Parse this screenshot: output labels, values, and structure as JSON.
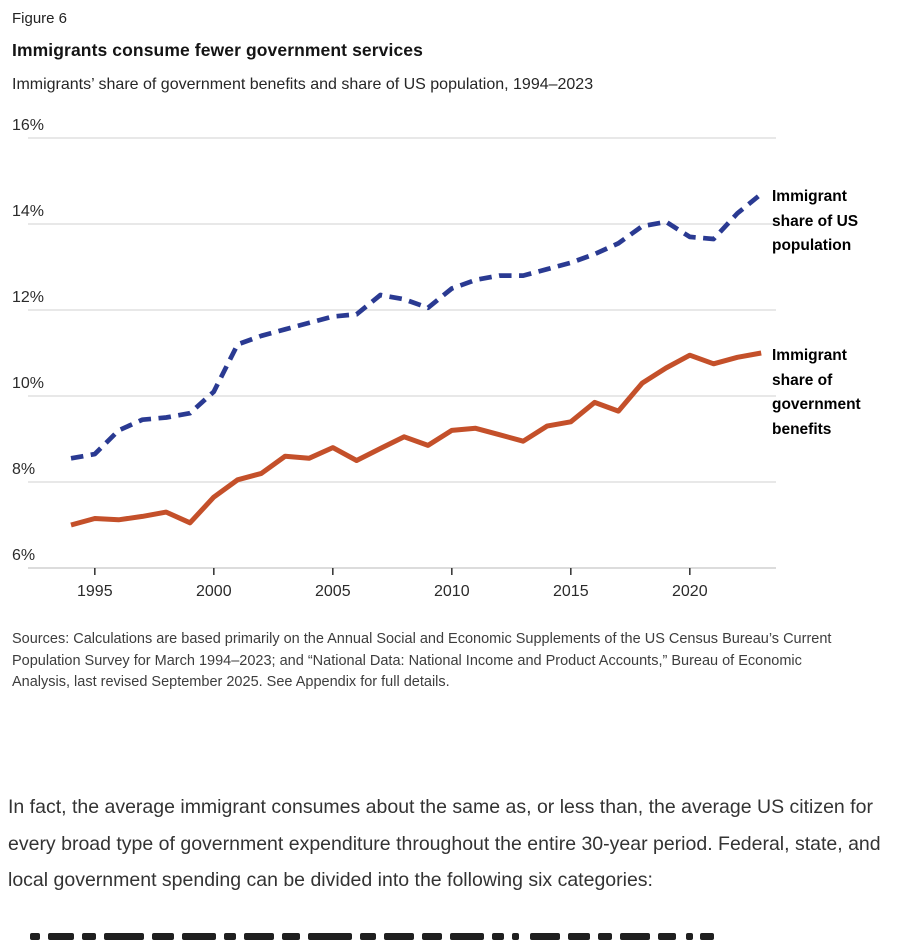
{
  "figure": {
    "label": "Figure 6",
    "title": "Immigrants consume fewer government services",
    "subtitle": "Immigrants’ share of government benefits and share of US population, 1994–2023"
  },
  "chart_data": {
    "type": "line",
    "x": [
      1994,
      1995,
      1996,
      1997,
      1998,
      1999,
      2000,
      2001,
      2002,
      2003,
      2004,
      2005,
      2006,
      2007,
      2008,
      2009,
      2010,
      2011,
      2012,
      2013,
      2014,
      2015,
      2016,
      2017,
      2018,
      2019,
      2020,
      2021,
      2022,
      2023
    ],
    "series": [
      {
        "name": "Immigrant share of US population",
        "style": "dashed",
        "color": "#2a3a92",
        "values": [
          8.55,
          8.65,
          9.2,
          9.45,
          9.5,
          9.6,
          10.1,
          11.2,
          11.4,
          11.55,
          11.7,
          11.85,
          11.9,
          12.35,
          12.25,
          12.05,
          12.5,
          12.7,
          12.8,
          12.8,
          12.95,
          13.1,
          13.3,
          13.55,
          13.95,
          14.05,
          13.7,
          13.65,
          14.25,
          14.7
        ]
      },
      {
        "name": "Immigrant share of government benefits",
        "style": "solid",
        "color": "#c4502a",
        "values": [
          7.0,
          7.15,
          7.12,
          7.2,
          7.3,
          7.05,
          7.65,
          8.05,
          8.2,
          8.6,
          8.55,
          8.8,
          8.5,
          8.78,
          9.05,
          8.85,
          9.2,
          9.25,
          9.1,
          8.95,
          9.3,
          9.4,
          9.85,
          9.65,
          10.3,
          10.65,
          10.95,
          10.75,
          10.9,
          11.0
        ]
      }
    ],
    "ylim": [
      6,
      16
    ],
    "yticks": [
      {
        "value": 16,
        "label": "16%"
      },
      {
        "value": 14,
        "label": "14%"
      },
      {
        "value": 12,
        "label": "12%"
      },
      {
        "value": 10,
        "label": "10%"
      },
      {
        "value": 8,
        "label": "8%"
      },
      {
        "value": 6,
        "label": "6%"
      }
    ],
    "xticks": [
      {
        "value": 1995,
        "label": "1995"
      },
      {
        "value": 2000,
        "label": "2000"
      },
      {
        "value": 2005,
        "label": "2005"
      },
      {
        "value": 2010,
        "label": "2010"
      },
      {
        "value": 2015,
        "label": "2015"
      },
      {
        "value": 2020,
        "label": "2020"
      }
    ],
    "grid": "horizontal gridlines on, vertical off",
    "legend_position": "right of line ends",
    "colors": {
      "gridline": "#dadada",
      "axis": "#c8c8c8",
      "tick": "#3c3c3c",
      "axis_label": "#2b2b2b"
    }
  },
  "sources": "Sources: Calculations are based primarily on the Annual Social and Economic Supplements of the US Census Bureau’s Current Population Survey for March 1994–2023; and “National Data: National Income and Product Accounts,” Bureau of Economic Analysis, last revised September 2025. See Appendix for full details.",
  "body_paragraph": "In fact, the average immigrant consumes about the same as, or less than, the average US citizen for every broad type of government expenditure throughout the entire 30-year period. Federal, state, and local government spending can be divided into the following six categories:"
}
